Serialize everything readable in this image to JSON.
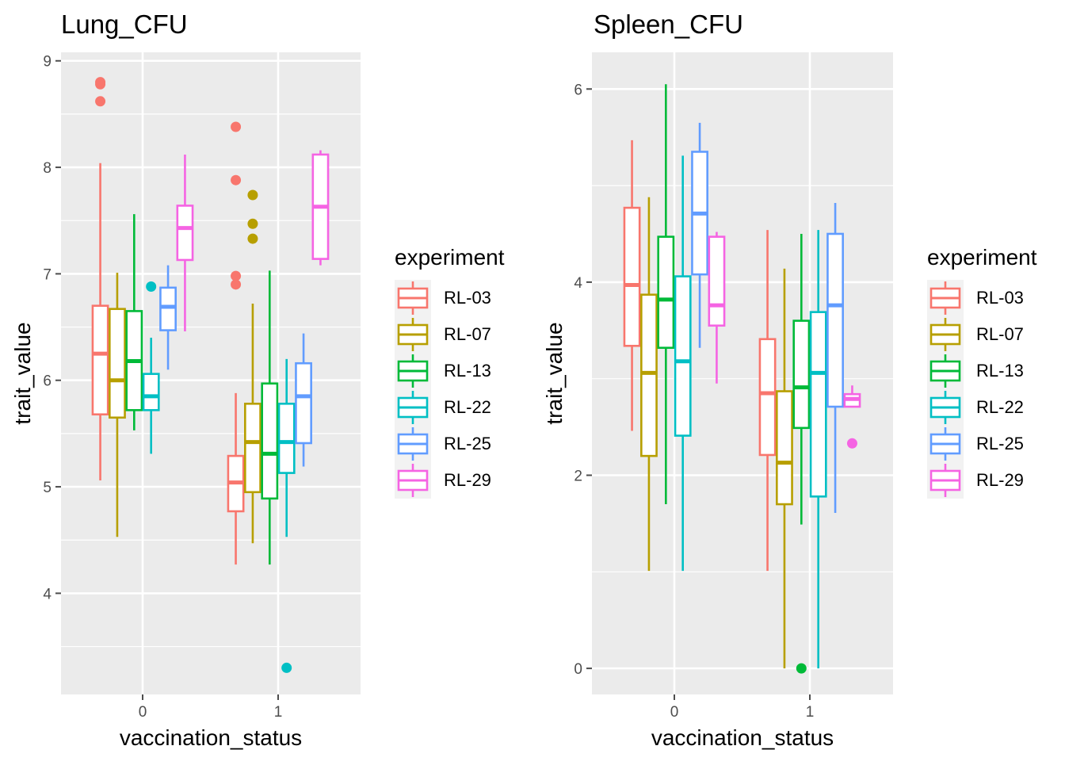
{
  "legend": {
    "title": "experiment",
    "placement": "right"
  },
  "chart_data": [
    {
      "type": "boxplot",
      "title": "Lung_CFU",
      "xlabel": "vaccination_status",
      "ylabel": "trait_value",
      "categories": [
        "0",
        "1"
      ],
      "yticks": [
        4,
        5,
        6,
        7,
        8,
        9
      ],
      "ylim": [
        3.05,
        9.08
      ],
      "grid": true,
      "legend_title": "experiment",
      "series": [
        {
          "name": "RL-03",
          "color": "#F8766D",
          "boxes": [
            {
              "lower": 5.06,
              "q1": 5.68,
              "median": 6.25,
              "q3": 6.7,
              "upper": 8.04,
              "outliers": [
                8.62,
                8.78,
                8.8
              ]
            },
            {
              "lower": 4.27,
              "q1": 4.77,
              "median": 5.04,
              "q3": 5.29,
              "upper": 5.88,
              "outliers": [
                6.9,
                6.98,
                7.88,
                8.38
              ]
            }
          ]
        },
        {
          "name": "RL-07",
          "color": "#B79F00",
          "boxes": [
            {
              "lower": 4.53,
              "q1": 5.65,
              "median": 6.0,
              "q3": 6.67,
              "upper": 7.01,
              "outliers": []
            },
            {
              "lower": 4.47,
              "q1": 4.95,
              "median": 5.42,
              "q3": 5.78,
              "upper": 6.72,
              "outliers": [
                7.33,
                7.47,
                7.74
              ]
            }
          ]
        },
        {
          "name": "RL-13",
          "color": "#00BA38",
          "boxes": [
            {
              "lower": 5.53,
              "q1": 5.72,
              "median": 6.18,
              "q3": 6.65,
              "upper": 7.56,
              "outliers": []
            },
            {
              "lower": 4.27,
              "q1": 4.89,
              "median": 5.31,
              "q3": 5.97,
              "upper": 7.03,
              "outliers": []
            }
          ]
        },
        {
          "name": "RL-22",
          "color": "#00BFC4",
          "boxes": [
            {
              "lower": 5.31,
              "q1": 5.72,
              "median": 5.85,
              "q3": 6.06,
              "upper": 6.4,
              "outliers": [
                6.88
              ]
            },
            {
              "lower": 4.53,
              "q1": 5.13,
              "median": 5.42,
              "q3": 5.78,
              "upper": 6.2,
              "outliers": [
                3.3
              ]
            }
          ]
        },
        {
          "name": "RL-25",
          "color": "#619CFF",
          "boxes": [
            {
              "lower": 6.1,
              "q1": 6.47,
              "median": 6.69,
              "q3": 6.87,
              "upper": 7.08,
              "outliers": []
            },
            {
              "lower": 5.19,
              "q1": 5.41,
              "median": 5.85,
              "q3": 6.16,
              "upper": 6.44,
              "outliers": []
            }
          ]
        },
        {
          "name": "RL-29",
          "color": "#F564E3",
          "boxes": [
            {
              "lower": 6.46,
              "q1": 7.13,
              "median": 7.43,
              "q3": 7.64,
              "upper": 8.12,
              "outliers": []
            },
            {
              "lower": 7.08,
              "q1": 7.14,
              "median": 7.63,
              "q3": 8.12,
              "upper": 8.16,
              "outliers": []
            }
          ]
        }
      ]
    },
    {
      "type": "boxplot",
      "title": "Spleen_CFU",
      "xlabel": "vaccination_status",
      "ylabel": "trait_value",
      "categories": [
        "0",
        "1"
      ],
      "yticks": [
        0,
        2,
        4,
        6
      ],
      "ylim": [
        -0.27,
        6.38
      ],
      "grid": true,
      "legend_title": "experiment",
      "series": [
        {
          "name": "RL-03",
          "color": "#F8766D",
          "boxes": [
            {
              "lower": 2.46,
              "q1": 3.34,
              "median": 3.97,
              "q3": 4.77,
              "upper": 5.47,
              "outliers": []
            },
            {
              "lower": 1.01,
              "q1": 2.21,
              "median": 2.85,
              "q3": 3.41,
              "upper": 4.54,
              "outliers": []
            }
          ]
        },
        {
          "name": "RL-07",
          "color": "#B79F00",
          "boxes": [
            {
              "lower": 1.01,
              "q1": 2.2,
              "median": 3.06,
              "q3": 3.87,
              "upper": 4.88,
              "outliers": []
            },
            {
              "lower": 0.0,
              "q1": 1.7,
              "median": 2.13,
              "q3": 2.87,
              "upper": 4.14,
              "outliers": []
            }
          ]
        },
        {
          "name": "RL-13",
          "color": "#00BA38",
          "boxes": [
            {
              "lower": 1.7,
              "q1": 3.32,
              "median": 3.82,
              "q3": 4.47,
              "upper": 6.05,
              "outliers": []
            },
            {
              "lower": 1.49,
              "q1": 2.49,
              "median": 2.91,
              "q3": 3.6,
              "upper": 4.5,
              "outliers": [
                0.0
              ]
            }
          ]
        },
        {
          "name": "RL-22",
          "color": "#00BFC4",
          "boxes": [
            {
              "lower": 1.01,
              "q1": 2.41,
              "median": 3.18,
              "q3": 4.06,
              "upper": 5.31,
              "outliers": []
            },
            {
              "lower": 0.0,
              "q1": 1.78,
              "median": 3.06,
              "q3": 3.69,
              "upper": 4.54,
              "outliers": []
            }
          ]
        },
        {
          "name": "RL-25",
          "color": "#619CFF",
          "boxes": [
            {
              "lower": 3.32,
              "q1": 4.08,
              "median": 4.71,
              "q3": 5.35,
              "upper": 5.65,
              "outliers": []
            },
            {
              "lower": 1.61,
              "q1": 2.71,
              "median": 3.76,
              "q3": 4.5,
              "upper": 4.82,
              "outliers": []
            }
          ]
        },
        {
          "name": "RL-29",
          "color": "#F564E3",
          "boxes": [
            {
              "lower": 2.95,
              "q1": 3.55,
              "median": 3.76,
              "q3": 4.47,
              "upper": 4.52,
              "outliers": []
            },
            {
              "lower": 2.71,
              "q1": 2.71,
              "median": 2.79,
              "q3": 2.84,
              "upper": 2.93,
              "outliers": [
                2.33
              ]
            }
          ]
        }
      ]
    }
  ]
}
